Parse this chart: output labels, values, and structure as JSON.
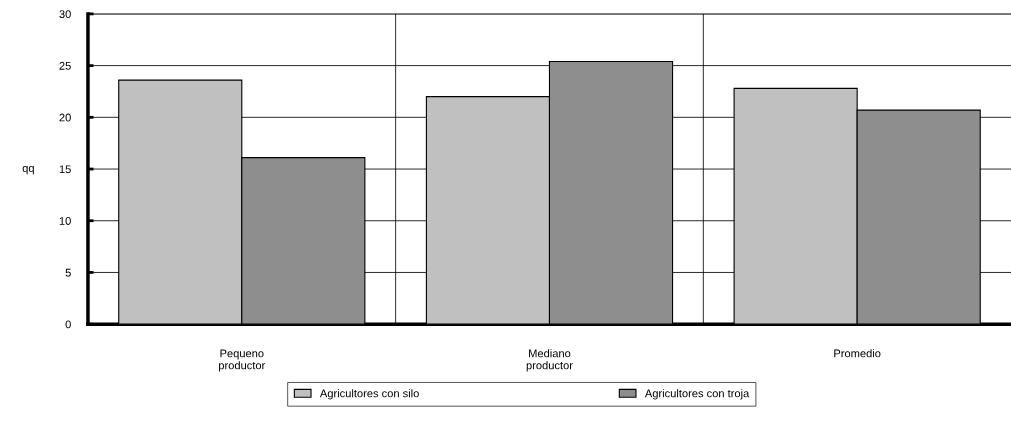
{
  "chart_data": {
    "type": "bar",
    "ylabel": "qq",
    "categories": [
      "Pequeno\nproductor",
      "Mediano\nproductor",
      "Promedio"
    ],
    "series": [
      {
        "name": "Agricultores con silo",
        "color": "#c0c0c0",
        "values": [
          23.6,
          22.0,
          22.8
        ]
      },
      {
        "name": "Agricultores con troja",
        "color": "#8e8e8e",
        "values": [
          16.1,
          25.4,
          20.7
        ]
      }
    ],
    "ylim": [
      0,
      30
    ],
    "yticks": [
      0,
      5,
      10,
      15,
      20,
      25,
      30
    ],
    "grid": true,
    "legend": "bottom"
  }
}
